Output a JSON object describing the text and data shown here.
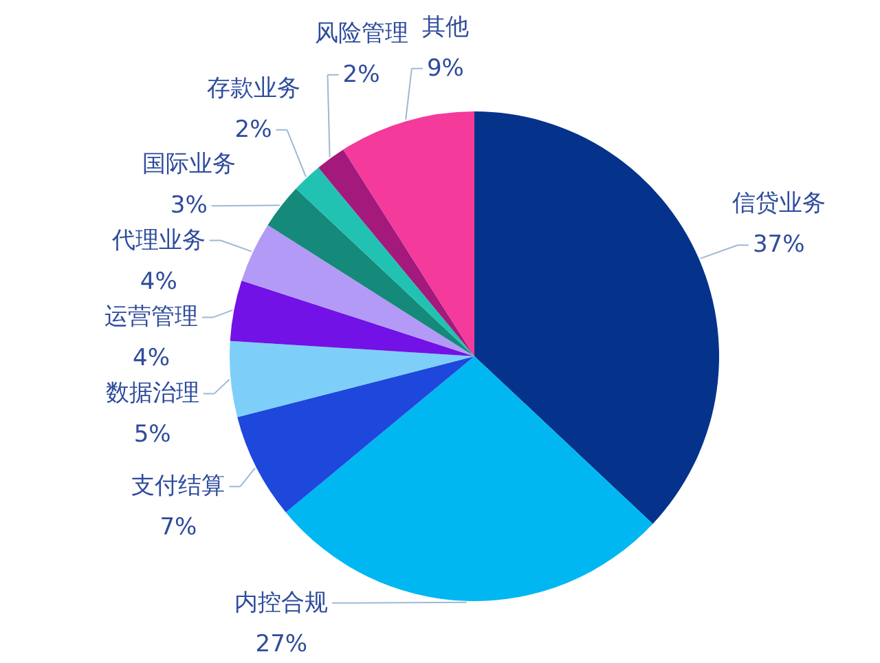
{
  "chart_data": {
    "type": "pie",
    "categories": [
      "信贷业务",
      "内控合规",
      "支付结算",
      "数据治理",
      "运营管理",
      "代理业务",
      "国际业务",
      "存款业务",
      "风险管理",
      "其他"
    ],
    "values": [
      37,
      27,
      7,
      5,
      4,
      4,
      3,
      2,
      2,
      9
    ],
    "value_labels": [
      "37%",
      "27%",
      "7%",
      "5%",
      "4%",
      "4%",
      "3%",
      "2%",
      "2%",
      "9%"
    ],
    "colors": [
      "#05338b",
      "#00b7f1",
      "#1e48dc",
      "#7dcffa",
      "#7212e6",
      "#b39af7",
      "#15897a",
      "#22c2b3",
      "#a3197c",
      "#f43a9b"
    ]
  }
}
